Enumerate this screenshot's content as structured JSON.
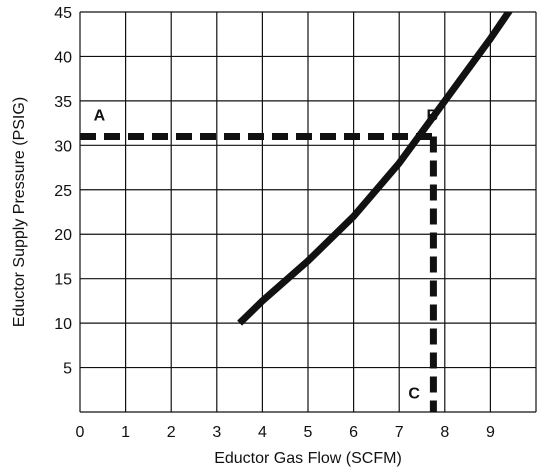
{
  "chart_data": {
    "type": "line",
    "title": "",
    "xlabel": "Eductor Gas Flow (SCFM)",
    "ylabel": "Eductor Supply Pressure (PSIG)",
    "xlim": [
      0,
      10
    ],
    "ylim": [
      0,
      45
    ],
    "grid": true,
    "x_ticks": [
      "0",
      "1",
      "2",
      "3",
      "4",
      "5",
      "6",
      "7",
      "8",
      "9"
    ],
    "y_ticks": [
      "5",
      "10",
      "15",
      "20",
      "25",
      "30",
      "35",
      "40",
      "45"
    ],
    "series": [
      {
        "values": [
          [
            3.5,
            10
          ],
          [
            4.0,
            12.5
          ],
          [
            5.0,
            17
          ],
          [
            6.0,
            22
          ],
          [
            7.0,
            28
          ],
          [
            8.0,
            35
          ],
          [
            9.0,
            42
          ],
          [
            9.8,
            48
          ]
        ],
        "color": "#111111"
      }
    ],
    "guides": [
      {
        "label": "A",
        "from": [
          0,
          31
        ],
        "to": [
          7.75,
          31
        ]
      },
      {
        "label": "C",
        "from": [
          7.75,
          31
        ],
        "to": [
          7.75,
          0
        ]
      }
    ],
    "annotations": [
      {
        "text": "A",
        "x": 0.3,
        "y": 32.8
      },
      {
        "text": "B",
        "x": 7.6,
        "y": 32.8
      },
      {
        "text": "C",
        "x": 7.2,
        "y": 1.5
      }
    ]
  }
}
